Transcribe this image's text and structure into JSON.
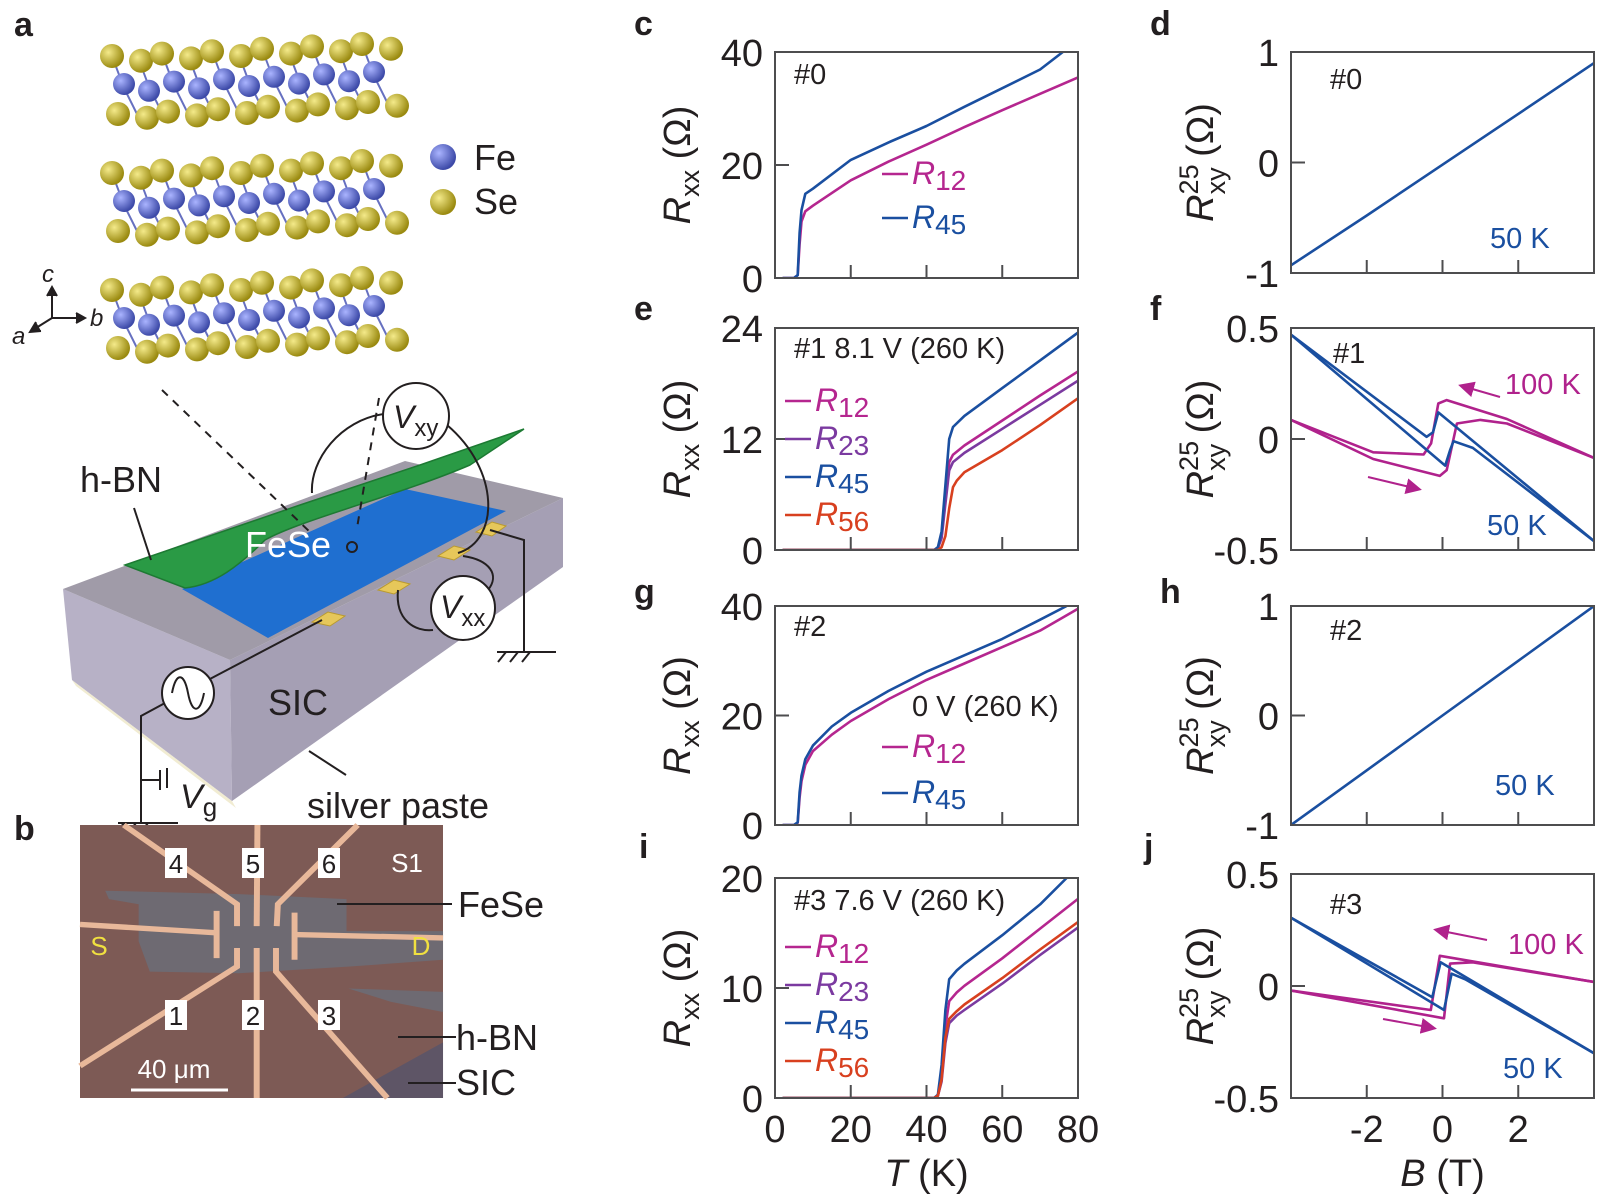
{
  "panel_a": {
    "label": "a",
    "legend": [
      {
        "element": "Fe",
        "color": "#5566c8"
      },
      {
        "element": "Se",
        "color": "#c8b62a"
      }
    ],
    "crystal_axes": {
      "c": "c",
      "b": "b",
      "a": "a"
    },
    "labels": {
      "hbn": "h-BN",
      "fese": "FeSe",
      "sic": "SIC",
      "silver_paste": "silver paste",
      "vxy": {
        "symbol": "V",
        "sub": "xy"
      },
      "vxx": {
        "symbol": "V",
        "sub": "xx"
      },
      "vg": {
        "symbol": "V",
        "sub": "g"
      }
    },
    "colors": {
      "hbn": "#2a9a45",
      "fese": "#1f6fd0",
      "sic": "#a7a2b4",
      "contacts": "#e6c75a"
    }
  },
  "panel_b": {
    "label": "b",
    "contacts_top": [
      "4",
      "5",
      "6"
    ],
    "contacts_bottom": [
      "1",
      "2",
      "3"
    ],
    "sample": "S1",
    "source": "S",
    "drain": "D",
    "scale_bar": "40 μm",
    "labels": {
      "fese": "FeSe",
      "hbn": "h-BN",
      "sic": "SIC"
    }
  },
  "chart_data": [
    {
      "panel": "c",
      "type": "line",
      "annotation": "#0",
      "extra_annotation": "",
      "xlim": [
        0,
        80
      ],
      "ylim": [
        0,
        40
      ],
      "xticks": [
        0,
        20,
        40,
        60,
        80
      ],
      "yticks": [
        0,
        20,
        40
      ],
      "xlabel": {
        "symbol": "T",
        "unit": "(K)"
      },
      "ylabel": {
        "symbol": "R",
        "sub": "xx",
        "sup": "",
        "unit": "(Ω)"
      },
      "series": [
        {
          "name": "R12",
          "color": "#b5268f",
          "legend": true,
          "x": [
            2,
            5,
            6,
            6.5,
            7,
            8,
            10,
            20,
            30,
            40,
            50,
            60,
            70,
            80
          ],
          "y": [
            0,
            0,
            0.5,
            6,
            10,
            11.8,
            12.8,
            17.3,
            20.6,
            23.6,
            26.7,
            29.7,
            32.6,
            35.5
          ]
        },
        {
          "name": "R45",
          "color": "#1a4fa0",
          "legend": true,
          "x": [
            2,
            5,
            6,
            6.5,
            7,
            8,
            10,
            20,
            30,
            40,
            50,
            60,
            70,
            76
          ],
          "y": [
            0,
            0,
            0.5,
            8,
            12,
            14.9,
            15.8,
            20.9,
            24,
            26.9,
            30.3,
            33.6,
            36.9,
            40
          ]
        }
      ]
    },
    {
      "panel": "d",
      "type": "line",
      "annotation": "#0",
      "extra_annotation": "",
      "xlim": [
        -4,
        4
      ],
      "ylim": [
        -1,
        1
      ],
      "xticks": [
        -2,
        0,
        2
      ],
      "yticks": [
        -1,
        0,
        1
      ],
      "xlabel": {
        "symbol": "B",
        "unit": "(T)"
      },
      "ylabel": {
        "symbol": "R",
        "sub": "xy",
        "sup": "25",
        "unit": "(Ω)"
      },
      "series": [
        {
          "name": "50 K",
          "color": "#1a4fa0",
          "legend": false,
          "branches": [
            {
              "x": [
                -4,
                -2,
                0,
                2,
                4
              ],
              "y": [
                -0.93,
                -0.48,
                -0.02,
                0.44,
                0.9
              ]
            }
          ]
        }
      ]
    },
    {
      "panel": "e",
      "type": "line",
      "annotation": "#1  8.1 V (260 K)",
      "extra_annotation": "",
      "xlim": [
        0,
        80
      ],
      "ylim": [
        0,
        24
      ],
      "xticks": [
        0,
        20,
        40,
        60,
        80
      ],
      "yticks": [
        0,
        12,
        24
      ],
      "xlabel": {
        "symbol": "T",
        "unit": "(K)"
      },
      "ylabel": {
        "symbol": "R",
        "sub": "xx",
        "sup": "",
        "unit": "(Ω)"
      },
      "series": [
        {
          "name": "R12",
          "color": "#b5268f",
          "legend": true,
          "x": [
            2,
            42,
            43,
            44,
            45,
            46,
            47,
            50,
            60,
            70,
            80
          ],
          "y": [
            0,
            0,
            0.2,
            1.5,
            6,
            9.5,
            10.3,
            11.3,
            14,
            16.7,
            19.3
          ]
        },
        {
          "name": "R23",
          "color": "#7b3aa0",
          "legend": true,
          "x": [
            2,
            42,
            43,
            44,
            45,
            46,
            47,
            50,
            60,
            70,
            80
          ],
          "y": [
            0,
            0,
            0.2,
            1.3,
            5,
            8.6,
            9.5,
            10.5,
            13.1,
            15.7,
            18.3
          ]
        },
        {
          "name": "R45",
          "color": "#1a4fa0",
          "legend": true,
          "x": [
            2,
            42,
            43,
            44,
            45,
            46,
            47,
            50,
            60,
            70,
            80
          ],
          "y": [
            0,
            0,
            0.3,
            2,
            7,
            12,
            13.3,
            14.5,
            17.5,
            20.5,
            23.5
          ]
        },
        {
          "name": "R56",
          "color": "#d8401f",
          "legend": true,
          "x": [
            2,
            43,
            44,
            45,
            46,
            47,
            48,
            50,
            60,
            70,
            80
          ],
          "y": [
            0,
            0,
            0.3,
            1.5,
            4.5,
            6.8,
            7.5,
            8.4,
            10.8,
            13.5,
            16.4
          ]
        }
      ]
    },
    {
      "panel": "f",
      "type": "line",
      "annotation": "#1",
      "extra_annotation": "",
      "xlim": [
        -4,
        4
      ],
      "ylim": [
        -0.5,
        0.5
      ],
      "xticks": [
        -2,
        0,
        2
      ],
      "yticks": [
        -0.5,
        0,
        0.5
      ],
      "xlabel": {
        "symbol": "B",
        "unit": "(T)"
      },
      "ylabel": {
        "symbol": "R",
        "sub": "xy",
        "sup": "25",
        "unit": "(Ω)"
      },
      "series": [
        {
          "name": "100 K",
          "color": "#b0228c",
          "legend": false,
          "branches": [
            {
              "x": [
                -4,
                -1.83,
                -0.5,
                -0.3,
                -0.11,
                0.11,
                1.7,
                4
              ],
              "y": [
                0.086,
                -0.06,
                -0.07,
                -0.02,
                0.16,
                0.175,
                0.09,
                -0.085
              ]
            },
            {
              "x": [
                -4,
                -1.83,
                -0.07,
                0.11,
                0.38,
                1.0,
                1.7,
                4
              ],
              "y": [
                0.086,
                -0.09,
                -0.166,
                -0.14,
                0.07,
                0.086,
                0.07,
                -0.085
              ]
            }
          ]
        },
        {
          "name": "50 K",
          "color": "#1a4fa0",
          "legend": false,
          "branches": [
            {
              "x": [
                -4,
                -0.42,
                -0.25,
                -0.11,
                4
              ],
              "y": [
                0.47,
                0.01,
                0.03,
                0.12,
                -0.46
              ]
            },
            {
              "x": [
                -4,
                0.07,
                0.2,
                0.29,
                0.8,
                4
              ],
              "y": [
                0.47,
                -0.12,
                -0.05,
                -0.01,
                -0.04,
                -0.46
              ]
            }
          ]
        }
      ]
    },
    {
      "panel": "g",
      "type": "line",
      "annotation": "#2",
      "extra_annotation": "0 V (260 K)",
      "xlim": [
        0,
        80
      ],
      "ylim": [
        0,
        40
      ],
      "xticks": [
        0,
        20,
        40,
        60,
        80
      ],
      "yticks": [
        0,
        20,
        40
      ],
      "xlabel": {
        "symbol": "T",
        "unit": "(K)"
      },
      "ylabel": {
        "symbol": "R",
        "sub": "xx",
        "sup": "",
        "unit": "(Ω)"
      },
      "series": [
        {
          "name": "R12",
          "color": "#b5268f",
          "legend": true,
          "x": [
            2,
            5,
            6,
            6.5,
            7,
            8,
            10,
            15,
            20,
            30,
            40,
            50,
            60,
            70,
            80
          ],
          "y": [
            0,
            0,
            0.4,
            5,
            8,
            11,
            13.5,
            16.5,
            19,
            23,
            26.5,
            29.5,
            32.5,
            35.5,
            39.5
          ]
        },
        {
          "name": "R45",
          "color": "#1a4fa0",
          "legend": true,
          "x": [
            2,
            5,
            6,
            6.5,
            7,
            8,
            10,
            15,
            20,
            30,
            40,
            50,
            60,
            70,
            77
          ],
          "y": [
            0,
            0,
            0.5,
            6,
            9,
            12,
            14.5,
            18,
            20.5,
            24.5,
            28,
            31,
            34,
            37.5,
            40
          ]
        }
      ]
    },
    {
      "panel": "h",
      "type": "line",
      "annotation": "#2",
      "extra_annotation": "",
      "xlim": [
        -4,
        4
      ],
      "ylim": [
        -1,
        1
      ],
      "xticks": [
        -2,
        0,
        2
      ],
      "yticks": [
        -1,
        0,
        1
      ],
      "xlabel": {
        "symbol": "B",
        "unit": "(T)"
      },
      "ylabel": {
        "symbol": "R",
        "sub": "xy",
        "sup": "25",
        "unit": "(Ω)"
      },
      "series": [
        {
          "name": "50 K",
          "color": "#1a4fa0",
          "legend": false,
          "branches": [
            {
              "x": [
                -4,
                -2,
                0,
                2,
                4
              ],
              "y": [
                -1,
                -0.5,
                0,
                0.5,
                1
              ]
            }
          ]
        }
      ]
    },
    {
      "panel": "i",
      "type": "line",
      "annotation": "#3  7.6 V (260 K)",
      "extra_annotation": "",
      "xlim": [
        0,
        80
      ],
      "ylim": [
        0,
        20
      ],
      "xticks": [
        0,
        20,
        40,
        60,
        80
      ],
      "yticks": [
        0,
        10,
        20
      ],
      "xlabel": {
        "symbol": "T",
        "unit": "(K)"
      },
      "ylabel": {
        "symbol": "R",
        "sub": "xx",
        "sup": "",
        "unit": "(Ω)"
      },
      "series": [
        {
          "name": "R12",
          "color": "#b5268f",
          "legend": true,
          "x": [
            2,
            42,
            43,
            44,
            45,
            46,
            48,
            50,
            60,
            70,
            80
          ],
          "y": [
            0,
            0,
            0.2,
            2,
            6.5,
            8.8,
            9.6,
            10.2,
            12.7,
            15.4,
            18.1
          ]
        },
        {
          "name": "R23",
          "color": "#7b3aa0",
          "legend": true,
          "x": [
            2,
            42,
            43,
            44,
            45,
            46,
            48,
            50,
            60,
            70,
            80
          ],
          "y": [
            0,
            0,
            0.2,
            1.5,
            5,
            6.8,
            7.5,
            8,
            10.4,
            13,
            15.5
          ]
        },
        {
          "name": "R45",
          "color": "#1a4fa0",
          "legend": true,
          "x": [
            2,
            42,
            43,
            44,
            45,
            46,
            48,
            50,
            60,
            70,
            77
          ],
          "y": [
            0,
            0,
            0.3,
            3,
            8,
            10.8,
            11.6,
            12.2,
            14.8,
            17.6,
            20
          ]
        },
        {
          "name": "R56",
          "color": "#d8401f",
          "legend": true,
          "x": [
            2,
            42,
            43,
            44,
            45,
            46,
            48,
            50,
            60,
            70,
            80
          ],
          "y": [
            0,
            0,
            0.2,
            1.7,
            5.5,
            7.2,
            7.9,
            8.5,
            10.9,
            13.5,
            16
          ]
        }
      ]
    },
    {
      "panel": "j",
      "type": "line",
      "annotation": "#3",
      "extra_annotation": "",
      "xlim": [
        -4,
        4
      ],
      "ylim": [
        -0.5,
        0.5
      ],
      "xticks": [
        -2,
        0,
        2
      ],
      "yticks": [
        -0.5,
        0,
        0.5
      ],
      "xlabel": {
        "symbol": "B",
        "unit": "(T)"
      },
      "ylabel": {
        "symbol": "R",
        "sub": "xy",
        "sup": "25",
        "unit": "(Ω)"
      },
      "series": [
        {
          "name": "100 K",
          "color": "#b0228c",
          "legend": false,
          "branches": [
            {
              "x": [
                -4,
                -0.31,
                -0.07,
                4
              ],
              "y": [
                -0.02,
                -0.107,
                0.135,
                0.018
              ]
            },
            {
              "x": [
                -4,
                0.04,
                0.2,
                0.8,
                4
              ],
              "y": [
                -0.02,
                -0.144,
                0.1,
                0.106,
                0.018
              ]
            }
          ]
        },
        {
          "name": "50 K",
          "color": "#1a4fa0",
          "legend": false,
          "branches": [
            {
              "x": [
                -4,
                -0.27,
                -0.05,
                4
              ],
              "y": [
                0.305,
                -0.05,
                0.106,
                -0.3
              ]
            },
            {
              "x": [
                -4,
                0.04,
                0.24,
                0.6,
                4
              ],
              "y": [
                0.305,
                -0.107,
                0.055,
                0.03,
                -0.3
              ]
            }
          ]
        }
      ]
    }
  ]
}
